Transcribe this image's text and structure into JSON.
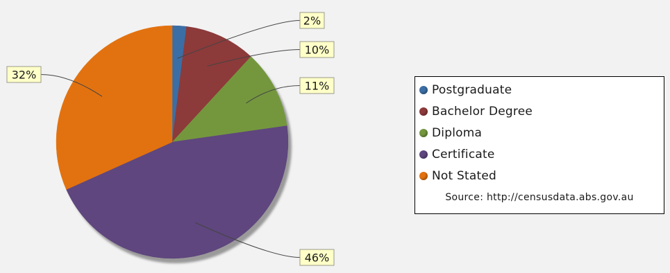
{
  "chart_data": {
    "type": "pie",
    "title": "",
    "slices": [
      {
        "label": "Postgraduate",
        "value": 2,
        "value_label": "2%",
        "color": "#3b6ea5"
      },
      {
        "label": "Bachelor Degree",
        "value": 10,
        "value_label": "10%",
        "color": "#8d3a3a"
      },
      {
        "label": "Diploma",
        "value": 11,
        "value_label": "11%",
        "color": "#74973e"
      },
      {
        "label": "Certificate",
        "value": 46,
        "value_label": "46%",
        "color": "#5f467e"
      },
      {
        "label": "Not Stated",
        "value": 32,
        "value_label": "32%",
        "color": "#e2720f"
      }
    ],
    "legend": {
      "position": "right",
      "items": [
        "Postgraduate",
        "Bachelor Degree",
        "Diploma",
        "Certificate",
        "Not Stated"
      ],
      "source": "Source: http://censusdata.abs.gov.au"
    }
  }
}
